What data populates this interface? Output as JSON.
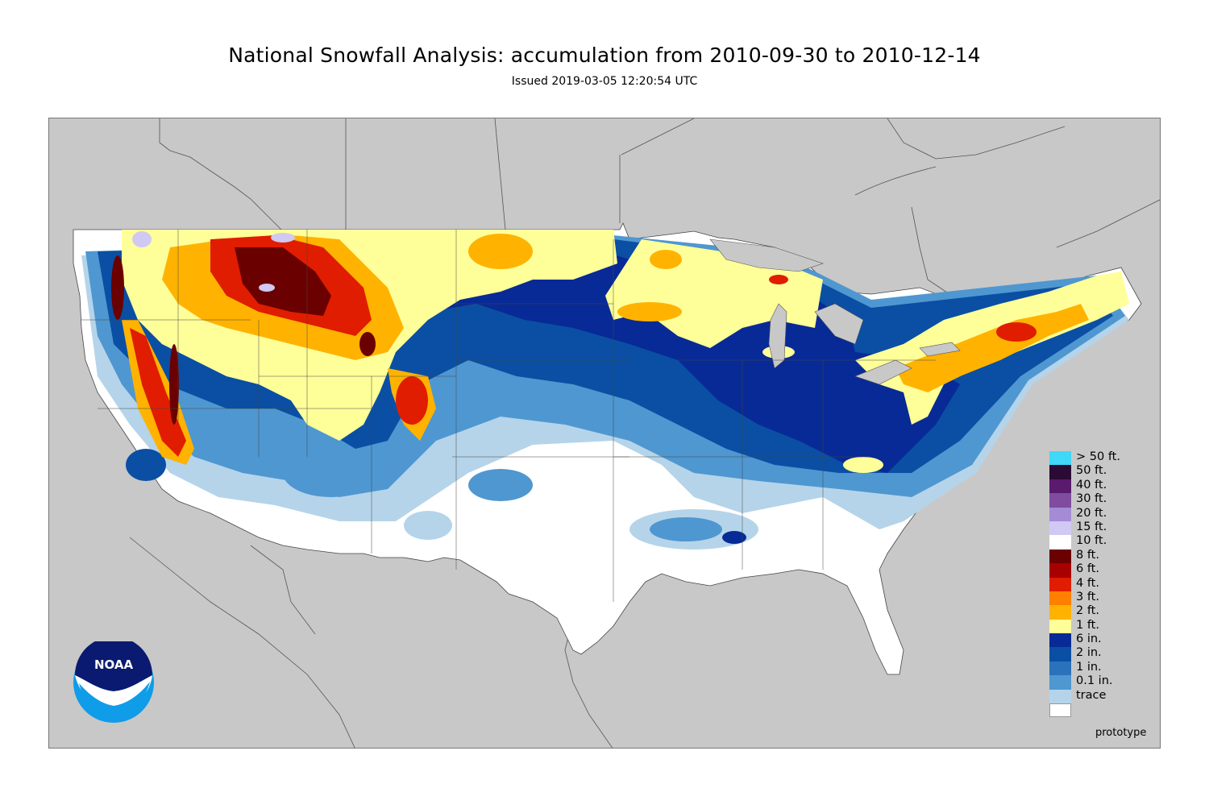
{
  "header": {
    "title": "National Snowfall Analysis: accumulation from 2010-09-30 to 2010-12-14",
    "subtitle": "Issued 2019-03-05 12:20:54 UTC"
  },
  "logo": {
    "text": "NOAA",
    "icon": "noaa-logo-icon"
  },
  "legend": {
    "items": [
      {
        "label": "> 50 ft.",
        "color": "#3fd8f6"
      },
      {
        "label": "50 ft.",
        "color": "#2b0b33"
      },
      {
        "label": "40 ft.",
        "color": "#5a1a6e"
      },
      {
        "label": "30 ft.",
        "color": "#7f4ca0"
      },
      {
        "label": "20 ft.",
        "color": "#a58ad6"
      },
      {
        "label": "15 ft.",
        "color": "#cfc9f3"
      },
      {
        "label": "10 ft.",
        "color": "#ffffff"
      },
      {
        "label": "8 ft.",
        "color": "#6b0000"
      },
      {
        "label": "6 ft.",
        "color": "#a80000"
      },
      {
        "label": "4 ft.",
        "color": "#e01d00"
      },
      {
        "label": "3 ft.",
        "color": "#ff7f00"
      },
      {
        "label": "2 ft.",
        "color": "#ffb300"
      },
      {
        "label": "1 ft.",
        "color": "#ffff99"
      },
      {
        "label": "6 in.",
        "color": "#082a96"
      },
      {
        "label": "2 in.",
        "color": "#0a4fa4"
      },
      {
        "label": "1 in.",
        "color": "#2a73bb"
      },
      {
        "label": "0.1 in.",
        "color": "#4f97d0"
      },
      {
        "label": "trace",
        "color": "#b5d4ea"
      },
      {
        "label": "",
        "color": "#ffffff"
      }
    ]
  },
  "footer": {
    "note": "prototype"
  },
  "colors": {
    "background_land": "#c8c8c8",
    "us_base": "#ffffff",
    "light_blue": "#b5d4ea",
    "mid_blue": "#4f97d0",
    "dark_blue": "#0a4fa4",
    "navy": "#082a96",
    "yellow": "#ffff99",
    "orange": "#ffb300",
    "red": "#e01d00",
    "dark_red": "#6b0000",
    "lavender": "#cfc9f3"
  }
}
